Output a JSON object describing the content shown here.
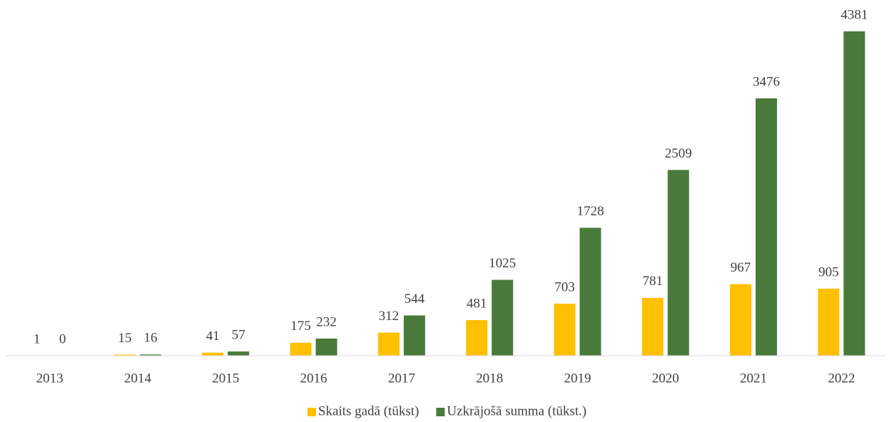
{
  "chart_data": {
    "type": "bar",
    "categories": [
      "2013",
      "2014",
      "2015",
      "2016",
      "2017",
      "2018",
      "2019",
      "2020",
      "2021",
      "2022"
    ],
    "series": [
      {
        "name": "Skaits gadā (tūkst)",
        "color": "#ffc000",
        "values": [
          1,
          15,
          41,
          175,
          312,
          481,
          703,
          781,
          967,
          905
        ]
      },
      {
        "name": "Uzkrājošā summa (tūkst.)",
        "color": "#4a7a3a",
        "values": [
          0,
          16,
          57,
          232,
          544,
          1025,
          1728,
          2509,
          3476,
          4381
        ]
      }
    ],
    "legend": "bottom"
  }
}
